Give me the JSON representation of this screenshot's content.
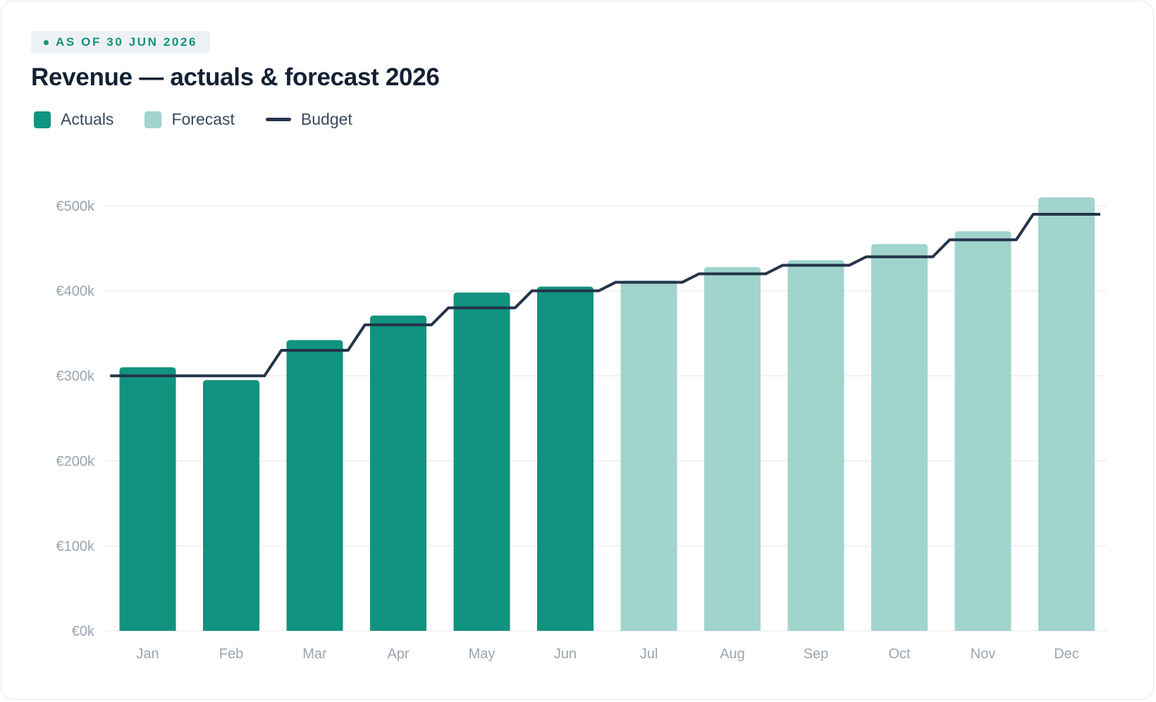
{
  "badge": {
    "text": "AS OF 30 JUN 2026"
  },
  "title": "Revenue — actuals & forecast 2026",
  "legend": {
    "actuals": "Actuals",
    "forecast": "Forecast",
    "budget": "Budget"
  },
  "colors": {
    "actuals": "#11937f",
    "forecast": "#a0d4cd",
    "budget": "#24344a",
    "grid": "#eceef1",
    "accent": "#11927f"
  },
  "chart_data": {
    "type": "bar",
    "title": "Revenue — actuals & forecast 2026",
    "xlabel": "",
    "ylabel": "",
    "ylim": [
      0,
      500000
    ],
    "y_ticks": [
      {
        "value": 0,
        "label": "€0k"
      },
      {
        "value": 100000,
        "label": "€100k"
      },
      {
        "value": 200000,
        "label": "€200k"
      },
      {
        "value": 300000,
        "label": "€300k"
      },
      {
        "value": 400000,
        "label": "€400k"
      },
      {
        "value": 500000,
        "label": "€500k"
      }
    ],
    "grid": true,
    "legend_position": "top-left",
    "categories": [
      "Jan",
      "Feb",
      "Mar",
      "Apr",
      "May",
      "Jun",
      "Jul",
      "Aug",
      "Sep",
      "Oct",
      "Nov",
      "Dec"
    ],
    "series": [
      {
        "name": "Actuals",
        "type": "bar",
        "values": [
          310000,
          295000,
          342000,
          371000,
          398000,
          405000,
          null,
          null,
          null,
          null,
          null,
          null
        ]
      },
      {
        "name": "Forecast",
        "type": "bar",
        "values": [
          null,
          null,
          null,
          null,
          null,
          null,
          412000,
          428000,
          436000,
          455000,
          470000,
          510000
        ]
      },
      {
        "name": "Budget",
        "type": "step-line",
        "values": [
          300000,
          300000,
          330000,
          360000,
          380000,
          400000,
          410000,
          420000,
          430000,
          440000,
          460000,
          490000
        ]
      }
    ]
  }
}
